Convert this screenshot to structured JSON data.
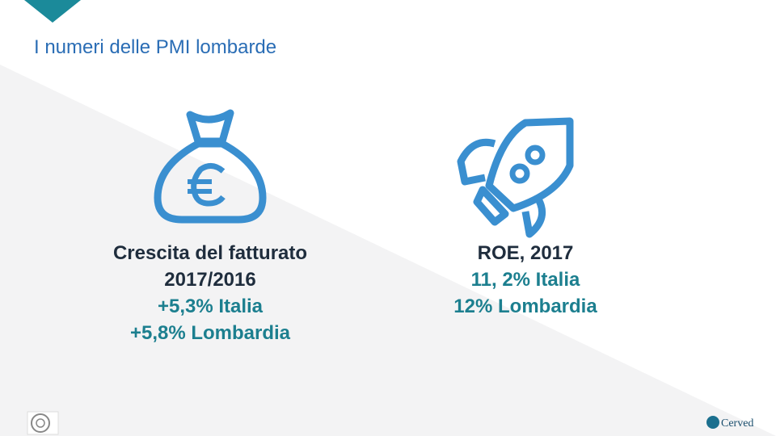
{
  "header": {
    "title": "I numeri delle PMI lombarde"
  },
  "items": [
    {
      "heading": [
        "Crescita del fatturato",
        "2017/2016"
      ],
      "values": [
        "+5,3% Italia",
        "+5,8% Lombardia"
      ]
    },
    {
      "heading": [
        "ROE, 2017"
      ],
      "values": [
        "11, 2% Italia",
        "12% Lombardia"
      ]
    }
  ],
  "footer": {
    "logo": "Cerved"
  }
}
